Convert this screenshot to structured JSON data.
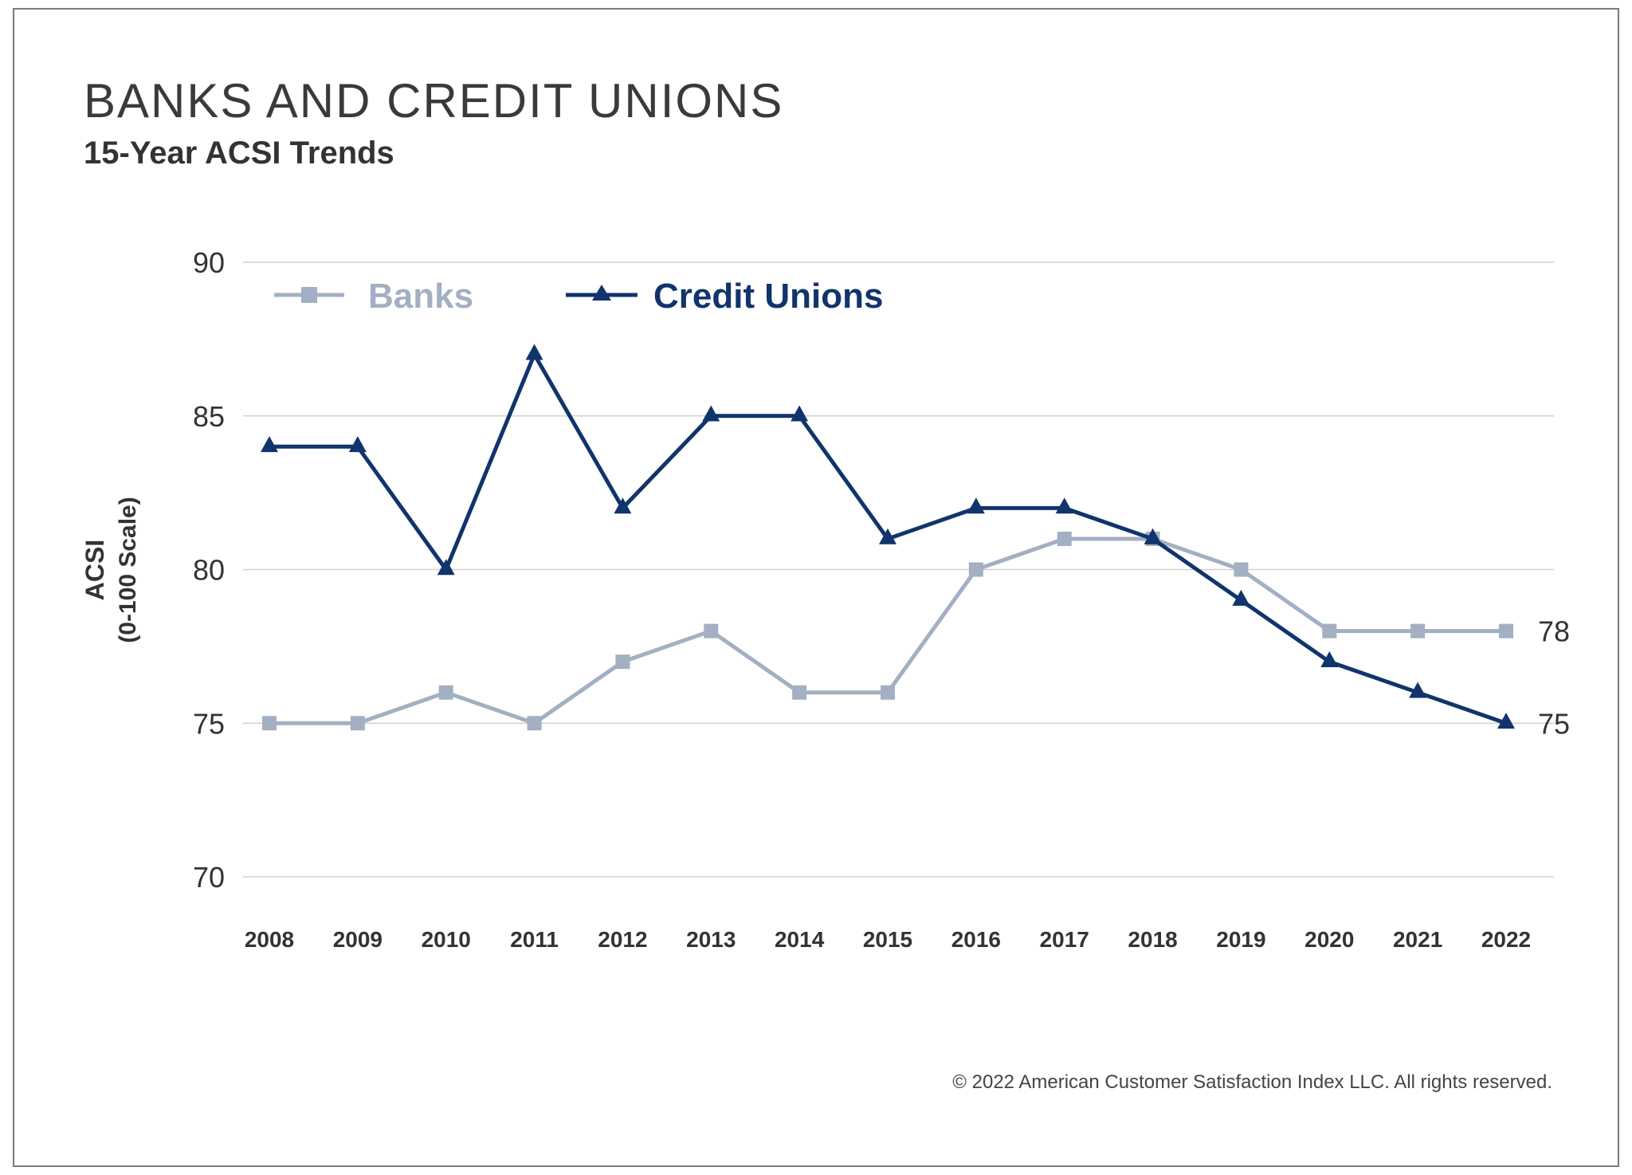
{
  "chart_data": {
    "type": "line",
    "title": "BANKS AND CREDIT UNIONS",
    "subtitle": "15-Year ACSI Trends",
    "ylabel": "ACSI",
    "ylabel_sub": "(0-100 Scale)",
    "xlabel": "",
    "ylim": [
      70,
      90
    ],
    "yticks": [
      70,
      75,
      80,
      85,
      90
    ],
    "grid": true,
    "legend_position": "top-left",
    "x": [
      "2008",
      "2009",
      "2010",
      "2011",
      "2012",
      "2013",
      "2014",
      "2015",
      "2016",
      "2017",
      "2018",
      "2019",
      "2020",
      "2021",
      "2022"
    ],
    "series": [
      {
        "name": "Banks",
        "marker": "square",
        "color": "#a3afc2",
        "values": [
          75,
          75,
          76,
          75,
          77,
          78,
          76,
          76,
          80,
          81,
          81,
          80,
          78,
          78,
          78
        ],
        "end_label": "78"
      },
      {
        "name": "Credit Unions",
        "marker": "triangle",
        "color": "#10346b",
        "values": [
          84,
          84,
          80,
          87,
          82,
          85,
          85,
          81,
          82,
          82,
          81,
          79,
          77,
          76,
          75
        ],
        "end_label": "75"
      }
    ]
  },
  "footer": {
    "copyright": "© 2022 American Customer Satisfaction Index LLC. All rights reserved."
  }
}
